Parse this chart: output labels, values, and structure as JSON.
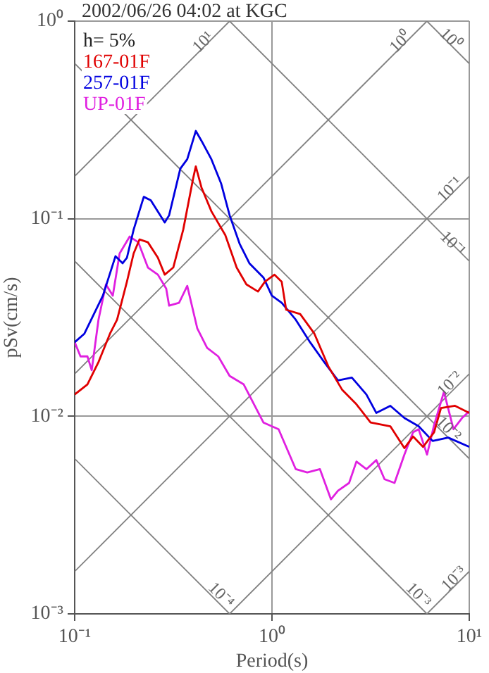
{
  "chart_data": {
    "type": "line",
    "title": "2002/06/26 04:02 at KGC",
    "xlabel": "Period(s)",
    "ylabel": "pSv(cm/s)",
    "log": "xy",
    "grid": true,
    "legend": "top left",
    "marker": "none",
    "line_style": "solid",
    "xlim": [
      0.1,
      10
    ],
    "ylim": [
      0.001,
      1
    ],
    "xticks": [
      {
        "value": 0.1,
        "label": "10⁻¹"
      },
      {
        "value": 1,
        "label": "10⁰"
      },
      {
        "value": 10,
        "label": "10¹"
      }
    ],
    "yticks": [
      {
        "value": 0.001,
        "label": "10⁻³"
      },
      {
        "value": 0.01,
        "label": "10⁻²"
      },
      {
        "value": 0.1,
        "label": "10⁻¹"
      },
      {
        "value": 1,
        "label": "10⁰"
      }
    ],
    "annotations": [
      "h= 5%",
      {
        "text": "10¹",
        "x": 0.45,
        "y": 0.78
      },
      {
        "text": "10⁰",
        "x": 4.5,
        "y": 0.78
      },
      {
        "text": "10⁻¹",
        "x": 8.0,
        "y": 0.14
      },
      {
        "text": "10⁻²",
        "x": 8.0,
        "y": 0.0145
      },
      {
        "text": "10⁻³",
        "x": 8.4,
        "y": 0.0015
      },
      {
        "text": "10⁰",
        "x": 8.0,
        "y": 0.81
      },
      {
        "text": "10⁻¹",
        "x": 8.2,
        "y": 0.0745
      },
      {
        "text": "10⁻²",
        "x": 7.8,
        "y": 0.0086
      },
      {
        "text": "10⁻³",
        "x": 5.5,
        "y": 0.00124
      },
      {
        "text": "10⁻⁴",
        "x": 0.55,
        "y": 0.00124
      }
    ],
    "series": [
      {
        "name": "167-01F",
        "color": "#e00000",
        "x": [
          0.1,
          0.116,
          0.132,
          0.151,
          0.164,
          0.184,
          0.199,
          0.213,
          0.235,
          0.264,
          0.286,
          0.316,
          0.355,
          0.398,
          0.411,
          0.439,
          0.493,
          0.58,
          0.662,
          0.742,
          0.849,
          0.921,
          1.03,
          1.12,
          1.18,
          1.39,
          1.64,
          1.93,
          2.27,
          2.68,
          3.16,
          3.98,
          4.69,
          5.19,
          5.83,
          6.63,
          7.19,
          8.47,
          10
        ],
        "values": [
          0.0129,
          0.0145,
          0.0188,
          0.0262,
          0.0308,
          0.048,
          0.0667,
          0.0785,
          0.076,
          0.0635,
          0.0521,
          0.0566,
          0.0881,
          0.159,
          0.184,
          0.144,
          0.109,
          0.0826,
          0.0566,
          0.0465,
          0.0428,
          0.048,
          0.0521,
          0.048,
          0.0346,
          0.0329,
          0.0262,
          0.0179,
          0.0136,
          0.0115,
          0.0093,
          0.0089,
          0.0069,
          0.0079,
          0.007,
          0.0083,
          0.011,
          0.0113,
          0.0104
        ]
      },
      {
        "name": "257-01F",
        "color": "#0000e0",
        "x": [
          0.1,
          0.112,
          0.139,
          0.161,
          0.175,
          0.184,
          0.199,
          0.224,
          0.243,
          0.286,
          0.301,
          0.343,
          0.372,
          0.411,
          0.439,
          0.493,
          0.552,
          0.61,
          0.685,
          0.768,
          0.905,
          0.998,
          1.12,
          1.32,
          1.56,
          1.84,
          2.16,
          2.54,
          3.01,
          3.38,
          3.98,
          4.69,
          5.54,
          6.52,
          7.82,
          10
        ],
        "values": [
          0.0237,
          0.0262,
          0.0408,
          0.0646,
          0.0595,
          0.0635,
          0.0881,
          0.129,
          0.124,
          0.0957,
          0.104,
          0.179,
          0.2,
          0.278,
          0.248,
          0.2,
          0.151,
          0.104,
          0.0748,
          0.0595,
          0.0504,
          0.0408,
          0.0375,
          0.0308,
          0.0237,
          0.0188,
          0.0152,
          0.0157,
          0.0129,
          0.0104,
          0.0113,
          0.0098,
          0.0089,
          0.0075,
          0.0078,
          0.007
        ]
      },
      {
        "name": "UP-01F",
        "color": "#e020e0",
        "x": [
          0.1,
          0.107,
          0.116,
          0.122,
          0.132,
          0.144,
          0.156,
          0.169,
          0.19,
          0.21,
          0.235,
          0.264,
          0.291,
          0.301,
          0.338,
          0.372,
          0.418,
          0.469,
          0.534,
          0.61,
          0.719,
          0.905,
          1.08,
          1.32,
          1.51,
          1.75,
          1.99,
          2.16,
          2.46,
          2.68,
          3.01,
          3.38,
          3.72,
          4.18,
          4.69,
          5.19,
          5.54,
          6.11,
          6.63,
          7.44,
          8.32,
          9.19,
          10
        ],
        "values": [
          0.0237,
          0.0201,
          0.0201,
          0.0171,
          0.0308,
          0.0465,
          0.0408,
          0.0667,
          0.0812,
          0.076,
          0.0566,
          0.0521,
          0.0443,
          0.0363,
          0.0375,
          0.0457,
          0.0279,
          0.0222,
          0.0201,
          0.016,
          0.0145,
          0.0093,
          0.0086,
          0.0054,
          0.0052,
          0.0054,
          0.0038,
          0.0042,
          0.0046,
          0.0059,
          0.0054,
          0.006,
          0.0048,
          0.0046,
          0.0064,
          0.0083,
          0.0086,
          0.0064,
          0.009,
          0.0133,
          0.0086,
          0.0098,
          0.0106
        ]
      },
      {
        "color": "#808080",
        "x": [
          0.1,
          0.61
        ],
        "values": [
          0.164,
          1
        ]
      },
      {
        "color": "#808080",
        "x": [
          0.1,
          6.1
        ],
        "values": [
          0.0164,
          1
        ]
      },
      {
        "color": "#808080",
        "x": [
          0.1,
          10
        ],
        "values": [
          0.00164,
          0.164
        ]
      },
      {
        "color": "#808080",
        "x": [
          0.61,
          10
        ],
        "values": [
          0.001,
          0.0164
        ]
      },
      {
        "color": "#808080",
        "x": [
          6.1,
          10
        ],
        "values": [
          0.001,
          0.00164
        ]
      },
      {
        "color": "#808080",
        "x": [
          6.1,
          10
        ],
        "values": [
          1,
          0.61
        ]
      },
      {
        "color": "#808080",
        "x": [
          0.61,
          10
        ],
        "values": [
          1,
          0.061
        ]
      },
      {
        "color": "#808080",
        "x": [
          0.1,
          10
        ],
        "values": [
          0.61,
          0.0061
        ]
      },
      {
        "color": "#808080",
        "x": [
          0.1,
          6.1
        ],
        "values": [
          0.061,
          0.001
        ]
      },
      {
        "color": "#808080",
        "x": [
          0.1,
          0.61
        ],
        "values": [
          0.0061,
          0.001
        ]
      }
    ]
  }
}
